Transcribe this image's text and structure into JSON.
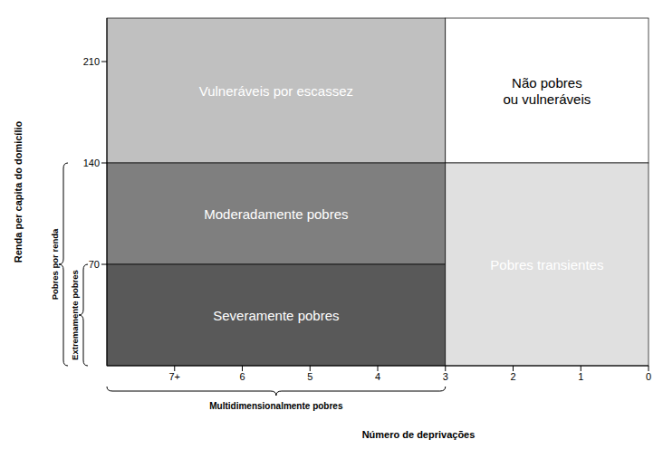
{
  "chart_data": {
    "type": "region",
    "x_label": "Número de deprivações",
    "y_label": "Renda per capita do domicílio",
    "xlim": [
      8,
      0
    ],
    "xticks": [
      {
        "value": 7,
        "label": "7+"
      },
      6,
      5,
      4,
      3,
      2,
      1,
      0
    ],
    "ylim": [
      0,
      240
    ],
    "yticks": [
      70,
      140,
      210
    ],
    "regions": [
      {
        "label": "Vulneráveis por escassez",
        "x": [
          8,
          3
        ],
        "y": [
          140,
          240
        ],
        "color": "#c0c0c0"
      },
      {
        "label": "Não pobres\nou vulneráveis",
        "x": [
          3,
          0
        ],
        "y": [
          140,
          240
        ],
        "color": "#ffffff"
      },
      {
        "label": "Moderadamente pobres",
        "x": [
          8,
          3
        ],
        "y": [
          70,
          140
        ],
        "color": "#7f7f7f"
      },
      {
        "label": "Severamente pobres",
        "x": [
          8,
          3
        ],
        "y": [
          0,
          70
        ],
        "color": "#595959"
      },
      {
        "label": "Pobres transientes",
        "x": [
          3,
          0
        ],
        "y": [
          0,
          140
        ],
        "color": "#e0e0e0"
      }
    ],
    "brackets": [
      {
        "label": "Pobres por renda",
        "axis": "y",
        "range": [
          0,
          140
        ]
      },
      {
        "label": "Extremamente pobres",
        "axis": "y",
        "range": [
          0,
          70
        ]
      },
      {
        "label": "Multidimensionalmente pobres",
        "axis": "x",
        "range": [
          8,
          3
        ]
      }
    ]
  }
}
